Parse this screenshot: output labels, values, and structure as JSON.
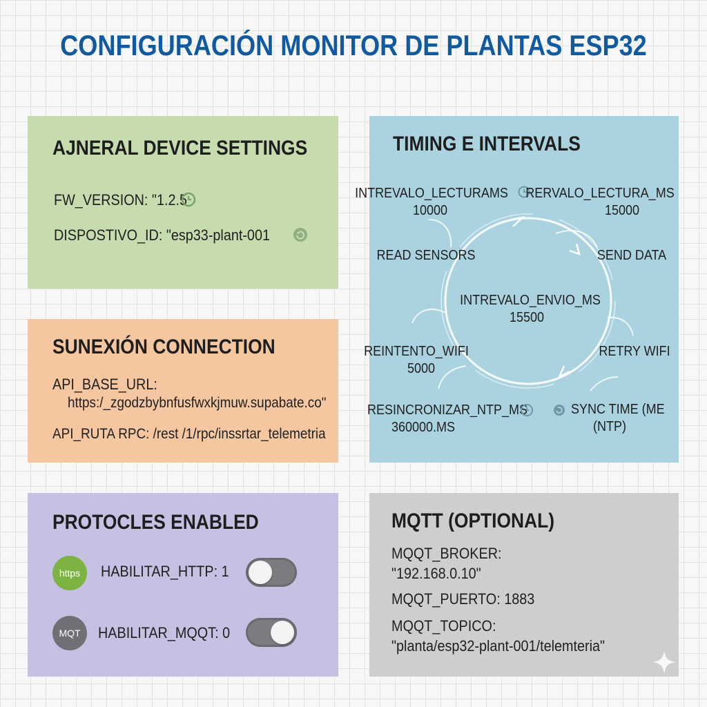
{
  "title": "CONFIGURACIÓN MONITOR DE PLANTAS ESP32",
  "general": {
    "heading": "AJNERAL DEVICE SETTINGS",
    "fw_version": "FW_VERSION: \"1.2.5",
    "dispositivo_id": "DISPOSTIVO_ID: \"esp33-plant-001"
  },
  "connection": {
    "heading": "SUNEXIÓN CONNECTION",
    "api_base_label": "API_BASE_URL:",
    "api_base_value": "https:/_zgodzbybnfusfwxkjmuw.supabate.co\"",
    "api_ruta": "API_RUTA RPC: /rest /1/rpc/inssrtar_telemetria"
  },
  "timing": {
    "heading": "TIMING E INTERVALS",
    "lectura_ms_label": "INTREVALO_LECTURAMS",
    "lectura_ms_value": "10000",
    "rervalo_label": "RERVALO_LECTURA_MS",
    "rervalo_value": "15000",
    "read_sensors": "READ SENSORS",
    "send_data": "SEND DATA",
    "envio_label": "INTREVALO_ENVIO_MS",
    "envio_value": "15500",
    "reintento_label": "REINTENTO_WIFI",
    "reintento_value": "5000",
    "retry_wifi": "RETRY WIFI",
    "ntp_label": "RESINCRONIZAR_NTP_MS",
    "ntp_value": "360000.MS",
    "sync_line1": "SYNC TIME (ME",
    "sync_line2": "(NTP)"
  },
  "protocols": {
    "heading": "PROTOCLES ENABLED",
    "https_badge": "https",
    "http_label": "HABILITAR_HTTP: 1",
    "mqt_badge": "MQT",
    "mqtt_label": "HABILITAR_MQQT: 0"
  },
  "mqtt": {
    "heading": "MQTT (OPTIONAL)",
    "broker_label": "MQQT_BROKER:",
    "broker_value": "\"192.168.0.10\"",
    "puerto": "MQQT_PUERTO: 1883",
    "topico_label": "MQQT_TOPICO:",
    "topico_value": "\"planta/esp32-plant-001/telemteria\""
  },
  "colors": {
    "title": "#0f5aa0",
    "general_bg": "#c6dcae",
    "connection_bg": "#f4c7a0",
    "timing_bg": "#aad3df",
    "protocols_bg": "#c6c0e2",
    "mqtt_bg": "#ccced0",
    "https_badge": "#7cb342",
    "mqt_badge": "#6f6f75"
  },
  "icons": [
    "clock-icon",
    "refresh-icon",
    "sync-icon",
    "sparkle-icon"
  ]
}
